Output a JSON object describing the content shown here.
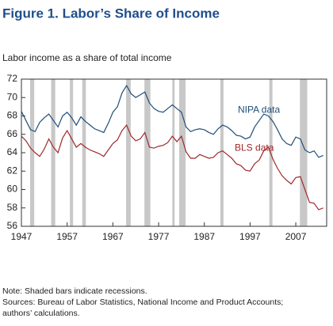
{
  "chart_data": {
    "type": "line",
    "title": "Figure 1. Labor’s Share of Income",
    "subtitle": "Labor income as a share of total income",
    "x": [
      1947,
      1948,
      1949,
      1950,
      1951,
      1952,
      1953,
      1954,
      1955,
      1956,
      1957,
      1958,
      1959,
      1960,
      1961,
      1962,
      1963,
      1964,
      1965,
      1966,
      1967,
      1968,
      1969,
      1970,
      1971,
      1972,
      1973,
      1974,
      1975,
      1976,
      1977,
      1978,
      1979,
      1980,
      1981,
      1982,
      1983,
      1984,
      1985,
      1986,
      1987,
      1988,
      1989,
      1990,
      1991,
      1992,
      1993,
      1994,
      1995,
      1996,
      1997,
      1998,
      1999,
      2000,
      2001,
      2002,
      2003,
      2004,
      2005,
      2006,
      2007,
      2008,
      2009,
      2010,
      2011,
      2012,
      2013
    ],
    "series": [
      {
        "name": "NIPA data",
        "color": "#1f4e79",
        "values": [
          68.5,
          67.5,
          66.5,
          66.3,
          67.3,
          67.8,
          68.2,
          67.5,
          66.8,
          68.0,
          68.4,
          67.8,
          67.0,
          67.9,
          67.4,
          67.0,
          66.6,
          66.4,
          66.2,
          67.2,
          68.4,
          69.0,
          70.5,
          71.3,
          70.4,
          70.0,
          70.3,
          70.6,
          69.4,
          68.8,
          68.5,
          68.4,
          68.8,
          69.2,
          68.8,
          68.4,
          66.8,
          66.3,
          66.5,
          66.6,
          66.5,
          66.2,
          66.0,
          66.6,
          67.0,
          66.8,
          66.4,
          65.9,
          65.8,
          65.5,
          65.7,
          66.8,
          67.5,
          68.2,
          68.0,
          67.4,
          66.5,
          65.5,
          65.0,
          64.8,
          65.7,
          65.5,
          64.3,
          64.0,
          64.2,
          63.5,
          63.7
        ]
      },
      {
        "name": "BLS data",
        "color": "#a0282a",
        "values": [
          65.8,
          65.3,
          64.5,
          64.0,
          63.6,
          64.4,
          65.5,
          64.6,
          64.0,
          65.6,
          66.4,
          65.5,
          64.6,
          65.0,
          64.6,
          64.3,
          64.1,
          63.9,
          63.6,
          64.3,
          65.0,
          65.4,
          66.4,
          67.0,
          65.8,
          65.3,
          65.5,
          66.2,
          64.6,
          64.5,
          64.7,
          64.8,
          65.1,
          65.8,
          65.2,
          65.8,
          64.1,
          63.4,
          63.4,
          63.8,
          63.6,
          63.4,
          63.5,
          64.0,
          64.2,
          63.8,
          63.4,
          62.8,
          62.6,
          62.1,
          62.0,
          62.8,
          63.2,
          64.2,
          64.6,
          63.3,
          62.3,
          61.5,
          61.0,
          60.6,
          61.3,
          61.4,
          60.0,
          58.6,
          58.5,
          57.8,
          58.0
        ]
      }
    ],
    "recessions": [
      [
        1948.9,
        1949.8
      ],
      [
        1953.5,
        1954.4
      ],
      [
        1957.6,
        1958.3
      ],
      [
        1960.3,
        1961.1
      ],
      [
        1969.9,
        1970.9
      ],
      [
        1973.9,
        1975.2
      ],
      [
        1980.0,
        1980.5
      ],
      [
        1981.5,
        1982.9
      ],
      [
        1990.5,
        1991.2
      ],
      [
        2001.2,
        2001.9
      ],
      [
        2007.9,
        2009.5
      ]
    ],
    "recession_color": "#c8c8c8",
    "xlim": [
      1947,
      2013.75
    ],
    "ylim": [
      56,
      72
    ],
    "xticks": [
      1947,
      1957,
      1967,
      1977,
      1987,
      1997,
      2007
    ],
    "yticks": [
      56,
      58,
      60,
      62,
      64,
      66,
      68,
      70,
      72
    ],
    "notes": [
      "Note: Shaded bars indicate recessions.",
      "Sources: Bureau of Labor Statistics, National Income and Product Accounts;",
      "authors’ calculations."
    ]
  }
}
